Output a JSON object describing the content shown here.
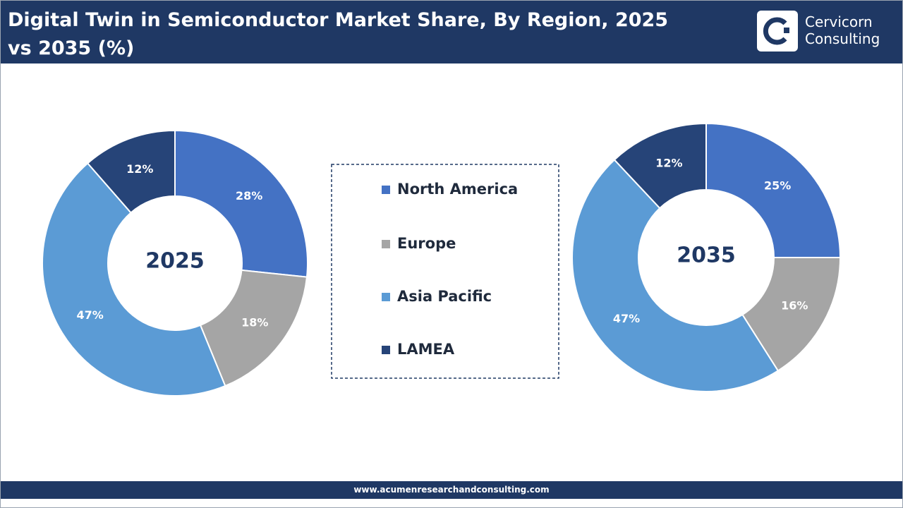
{
  "header": {
    "title": "Digital Twin in Semiconductor Market Share, By Region, 2025 vs 2035 (%)",
    "logo_line1": "Cervicorn",
    "logo_line2": "Consulting"
  },
  "footer": {
    "url": "www.acumenresearchandconsulting.com"
  },
  "chart_data": [
    {
      "type": "donut",
      "center_label": "2025",
      "categories": [
        "North America",
        "Europe",
        "Asia Pacific",
        "LAMEA"
      ],
      "values": [
        28,
        18,
        47,
        12
      ],
      "value_labels": [
        "28%",
        "18%",
        "47%",
        "12%"
      ],
      "colors": [
        "#4472c4",
        "#a5a5a5",
        "#5b9bd5",
        "#264478"
      ]
    },
    {
      "type": "donut",
      "center_label": "2035",
      "categories": [
        "North America",
        "Europe",
        "Asia Pacific",
        "LAMEA"
      ],
      "values": [
        25,
        16,
        47,
        12
      ],
      "value_labels": [
        "25%",
        "16%",
        "47%",
        "12%"
      ],
      "colors": [
        "#4472c4",
        "#a5a5a5",
        "#5b9bd5",
        "#264478"
      ]
    }
  ]
}
